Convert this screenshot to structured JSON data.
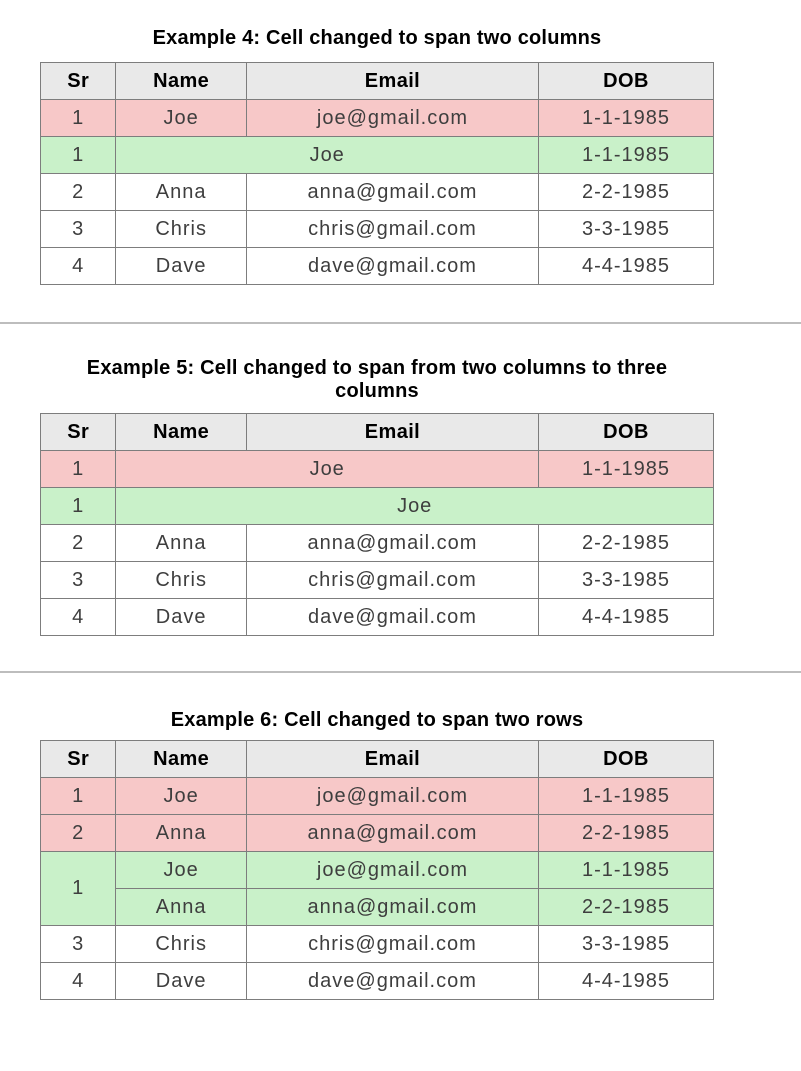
{
  "colors": {
    "header_bg": "#e9e9e9",
    "pink_row": "#f7c8c8",
    "green_row": "#c9f1c9",
    "table_border": "#7d7d7d",
    "divider": "#bdbdbd",
    "cell_text": "#3e3e3e",
    "heading_text": "#000000",
    "page_bg": "#ffffff"
  },
  "column_widths_pct": [
    11.2,
    19.4,
    43.4,
    26
  ],
  "sections": [
    {
      "id": "example-4",
      "title": "Example 4: Cell changed to span two columns",
      "columns": [
        "Sr",
        "Name",
        "Email",
        "DOB"
      ],
      "rows": [
        {
          "highlight": "pink",
          "cells": [
            {
              "text": "1"
            },
            {
              "text": "Joe"
            },
            {
              "text": "joe@gmail.com"
            },
            {
              "text": "1-1-1985"
            }
          ]
        },
        {
          "highlight": "green",
          "cells": [
            {
              "text": "1"
            },
            {
              "text": "Joe",
              "colspan": 2
            },
            {
              "text": "1-1-1985"
            }
          ]
        },
        {
          "highlight": "none",
          "cells": [
            {
              "text": "2"
            },
            {
              "text": "Anna"
            },
            {
              "text": "anna@gmail.com"
            },
            {
              "text": "2-2-1985"
            }
          ]
        },
        {
          "highlight": "none",
          "cells": [
            {
              "text": "3"
            },
            {
              "text": "Chris"
            },
            {
              "text": "chris@gmail.com"
            },
            {
              "text": "3-3-1985"
            }
          ]
        },
        {
          "highlight": "none",
          "cells": [
            {
              "text": "4"
            },
            {
              "text": "Dave"
            },
            {
              "text": "dave@gmail.com"
            },
            {
              "text": "4-4-1985"
            }
          ]
        }
      ]
    },
    {
      "id": "example-5",
      "title": "Example 5: Cell changed to span from two columns to three columns",
      "columns": [
        "Sr",
        "Name",
        "Email",
        "DOB"
      ],
      "rows": [
        {
          "highlight": "pink",
          "cells": [
            {
              "text": "1"
            },
            {
              "text": "Joe",
              "colspan": 2
            },
            {
              "text": "1-1-1985"
            }
          ]
        },
        {
          "highlight": "green",
          "cells": [
            {
              "text": "1"
            },
            {
              "text": "Joe",
              "colspan": 3
            }
          ]
        },
        {
          "highlight": "none",
          "cells": [
            {
              "text": "2"
            },
            {
              "text": "Anna"
            },
            {
              "text": "anna@gmail.com"
            },
            {
              "text": "2-2-1985"
            }
          ]
        },
        {
          "highlight": "none",
          "cells": [
            {
              "text": "3"
            },
            {
              "text": "Chris"
            },
            {
              "text": "chris@gmail.com"
            },
            {
              "text": "3-3-1985"
            }
          ]
        },
        {
          "highlight": "none",
          "cells": [
            {
              "text": "4"
            },
            {
              "text": "Dave"
            },
            {
              "text": "dave@gmail.com"
            },
            {
              "text": "4-4-1985"
            }
          ]
        }
      ]
    },
    {
      "id": "example-6",
      "title": "Example 6: Cell changed to span two rows",
      "columns": [
        "Sr",
        "Name",
        "Email",
        "DOB"
      ],
      "rows": [
        {
          "highlight": "pink",
          "cells": [
            {
              "text": "1"
            },
            {
              "text": "Joe"
            },
            {
              "text": "joe@gmail.com"
            },
            {
              "text": "1-1-1985"
            }
          ]
        },
        {
          "highlight": "pink",
          "cells": [
            {
              "text": "2"
            },
            {
              "text": "Anna"
            },
            {
              "text": "anna@gmail.com"
            },
            {
              "text": "2-2-1985"
            }
          ]
        },
        {
          "highlight": "green",
          "cells": [
            {
              "text": "1",
              "rowspan": 2
            },
            {
              "text": "Joe"
            },
            {
              "text": "joe@gmail.com"
            },
            {
              "text": "1-1-1985"
            }
          ]
        },
        {
          "highlight": "green",
          "cells": [
            {
              "text": "Anna"
            },
            {
              "text": "anna@gmail.com"
            },
            {
              "text": "2-2-1985"
            }
          ]
        },
        {
          "highlight": "none",
          "cells": [
            {
              "text": "3"
            },
            {
              "text": "Chris"
            },
            {
              "text": "chris@gmail.com"
            },
            {
              "text": "3-3-1985"
            }
          ]
        },
        {
          "highlight": "none",
          "cells": [
            {
              "text": "4"
            },
            {
              "text": "Dave"
            },
            {
              "text": "dave@gmail.com"
            },
            {
              "text": "4-4-1985"
            }
          ]
        }
      ]
    }
  ]
}
